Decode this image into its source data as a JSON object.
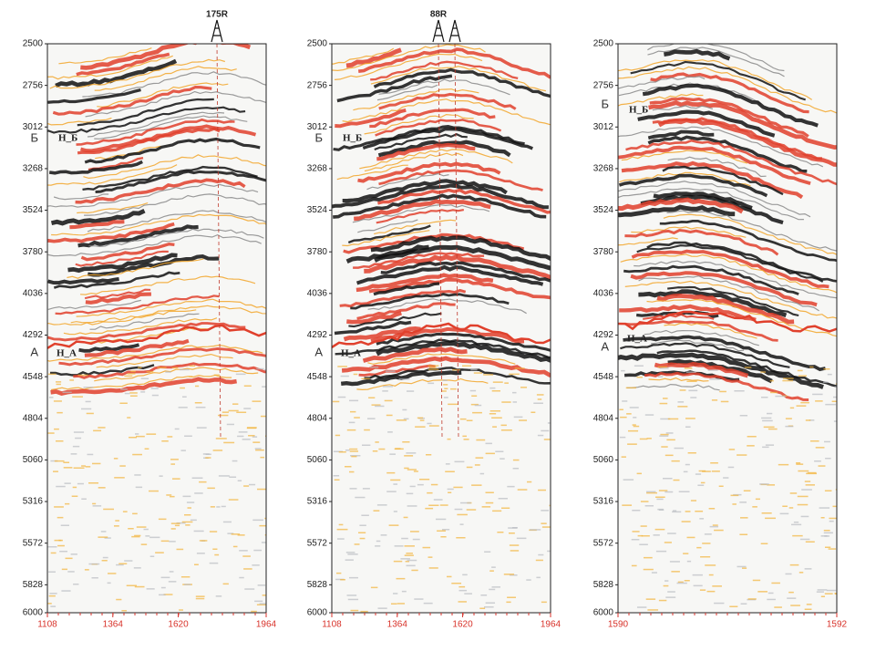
{
  "panels": [
    {
      "well": "175R",
      "ylim": [
        2500,
        6000
      ],
      "yticks": [
        2500,
        2756,
        3012,
        3268,
        3524,
        3780,
        4036,
        4292,
        4548,
        4804,
        5060,
        5316,
        5572,
        5828,
        6000
      ],
      "xlim": [
        1108,
        1964
      ],
      "xticks": [
        1108,
        1364,
        1620,
        1964
      ],
      "horizon_labels": [
        "Б",
        "А"
      ],
      "inner_labels": [
        "Н_Б",
        "Н_А"
      ]
    },
    {
      "well": "88R",
      "ylim": [
        2500,
        6000
      ],
      "yticks": [
        2500,
        2756,
        3012,
        3268,
        3524,
        3780,
        4036,
        4292,
        4548,
        4804,
        5060,
        5316,
        5572,
        5828,
        6000
      ],
      "xlim": [
        1108,
        1964
      ],
      "xticks": [
        1108,
        1364,
        1620,
        1964
      ],
      "horizon_labels": [
        "Б",
        "А"
      ],
      "inner_labels": [
        "Н_Б",
        "Н_А"
      ]
    },
    {
      "ylim": [
        2500,
        6000
      ],
      "yticks": [
        2500,
        2756,
        3012,
        3268,
        3524,
        3780,
        4036,
        4292,
        4548,
        4804,
        5060,
        5316,
        5572,
        5828,
        6000
      ],
      "xlim": [
        1590,
        1592
      ],
      "xticks": [
        1590,
        1592
      ],
      "horizon_labels": [
        "Б",
        "А"
      ],
      "inner_labels": [
        "Н_Б",
        "Н_А"
      ]
    }
  ]
}
